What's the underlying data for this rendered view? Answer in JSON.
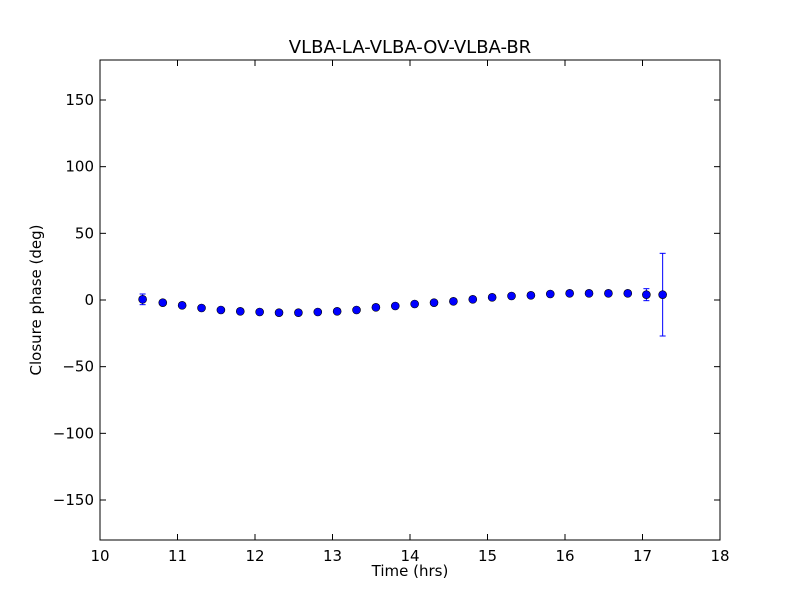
{
  "chart_data": {
    "type": "scatter",
    "title": "VLBA-LA-VLBA-OV-VLBA-BR",
    "xlabel": "Time (hrs)",
    "ylabel": "Closure phase (deg)",
    "xlim": [
      10,
      18
    ],
    "ylim": [
      -180,
      180
    ],
    "x_ticks": [
      10,
      11,
      12,
      13,
      14,
      15,
      16,
      17,
      18
    ],
    "x_tick_labels": [
      "10",
      "11",
      "12",
      "13",
      "14",
      "15",
      "16",
      "17",
      "18"
    ],
    "y_ticks": [
      150,
      100,
      50,
      0,
      -50,
      -100,
      -150
    ],
    "y_tick_labels": [
      "150",
      "100",
      "50",
      "0",
      "−50",
      "−100",
      "−150"
    ],
    "grid": false,
    "marker_color": "#0000ff",
    "errorbar_color": "#0000ff",
    "series": [
      {
        "x": [
          10.55,
          10.81,
          11.06,
          11.31,
          11.56,
          11.81,
          12.06,
          12.31,
          12.56,
          12.81,
          13.06,
          13.31,
          13.56,
          13.81,
          14.06,
          14.31,
          14.56,
          14.81,
          15.06,
          15.31,
          15.56,
          15.81,
          16.06,
          16.31,
          16.56,
          16.81,
          17.05,
          17.26
        ],
        "y": [
          0.5,
          -2,
          -4,
          -6,
          -7.5,
          -8.5,
          -9,
          -9.5,
          -9.5,
          -9,
          -8.5,
          -7.5,
          -5.5,
          -4.5,
          -3,
          -2,
          -1,
          0.5,
          2,
          3,
          3.5,
          4.5,
          5,
          5,
          5,
          5,
          4,
          4
        ],
        "yerr": [
          4,
          1.5,
          1.5,
          1.5,
          1.5,
          1.5,
          1.5,
          1.5,
          1.5,
          1.5,
          1.5,
          1.5,
          1.5,
          1.5,
          1.5,
          1.5,
          1.5,
          1.5,
          1.5,
          1.5,
          1.5,
          1.5,
          1.5,
          1.5,
          1.5,
          1.5,
          4.5,
          31
        ]
      }
    ]
  }
}
